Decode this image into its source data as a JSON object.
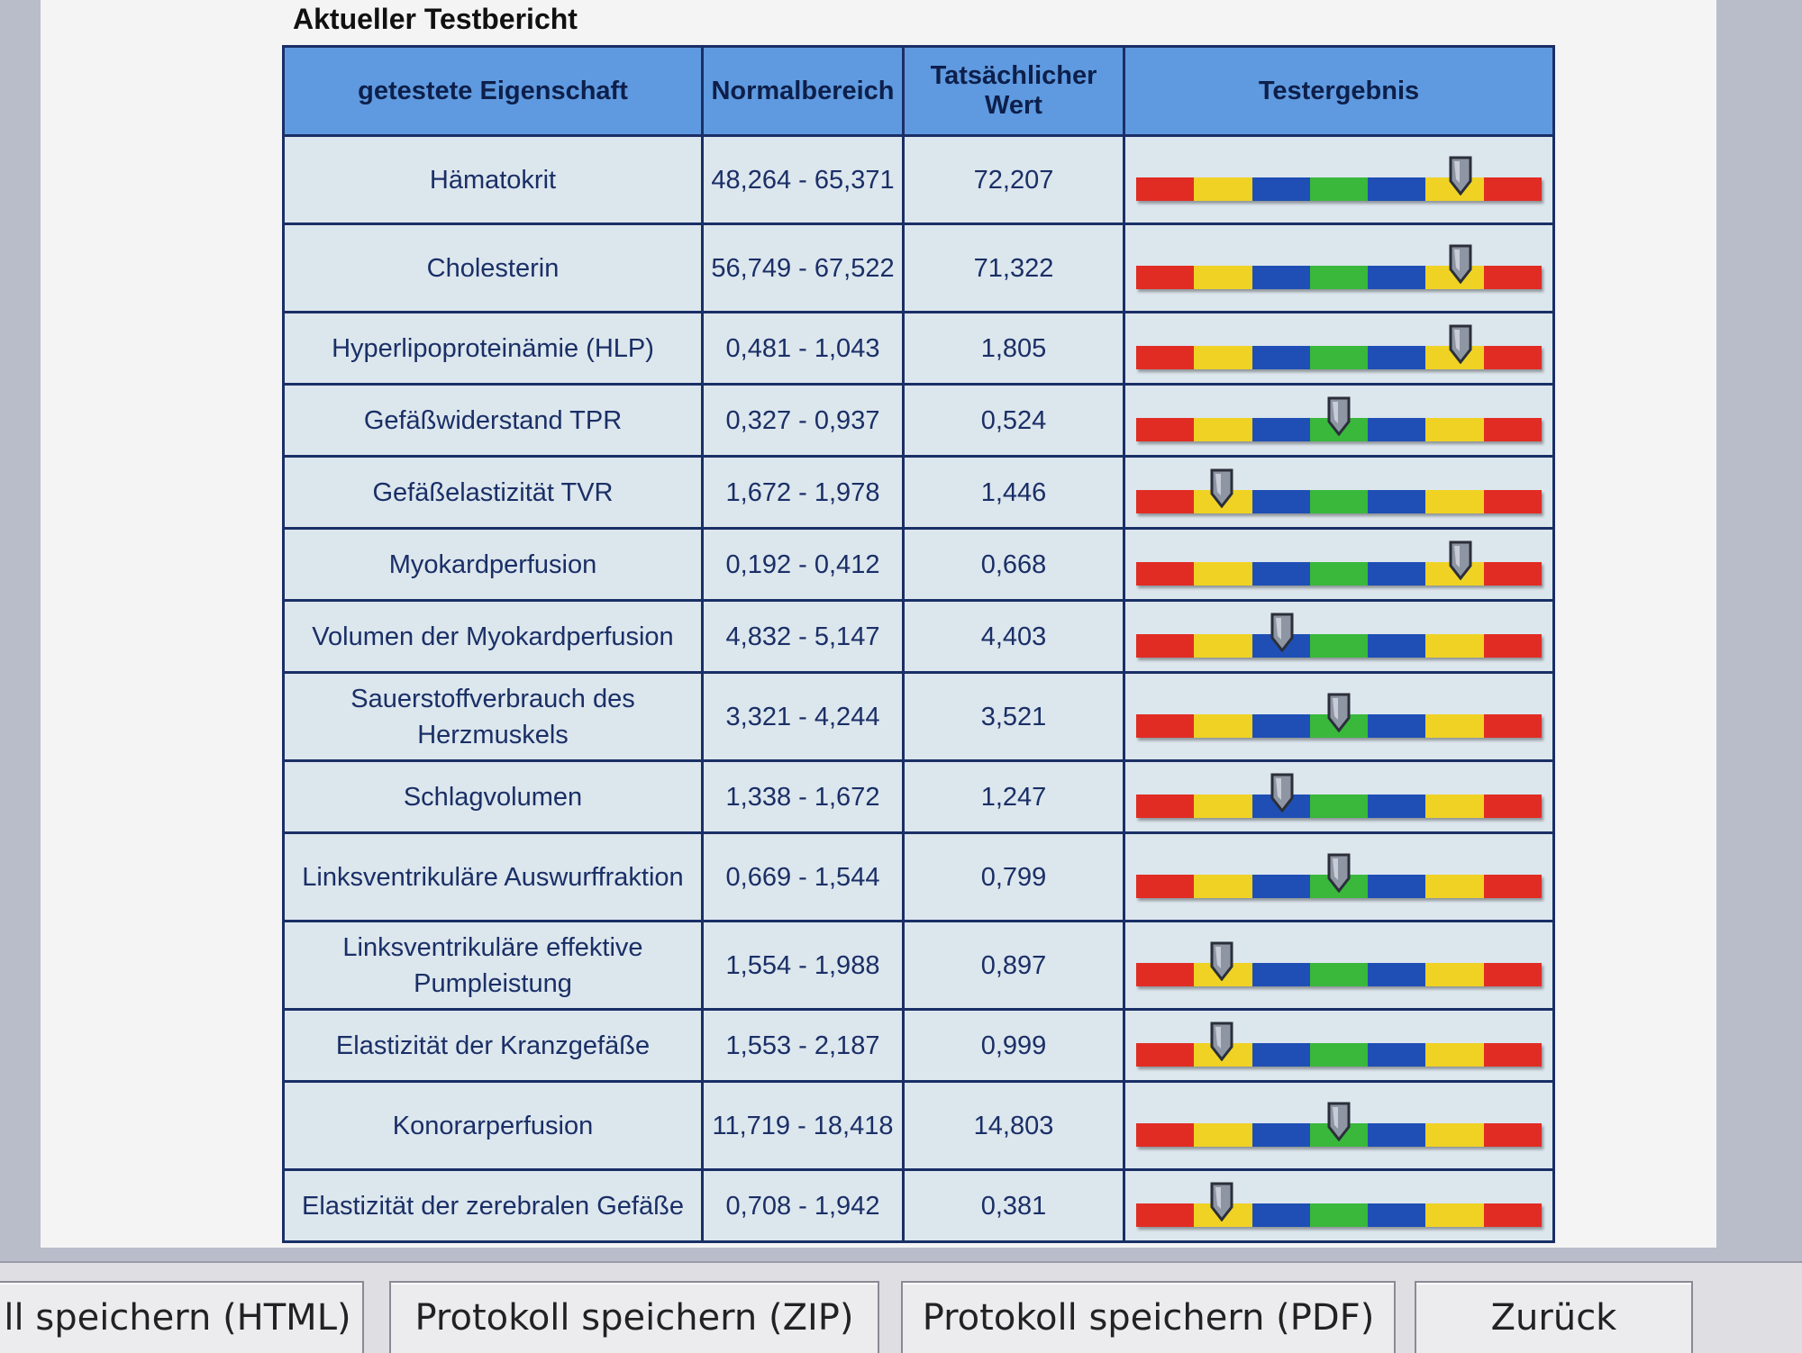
{
  "report": {
    "title": "Aktueller Testbericht",
    "headers": {
      "property": "getestete Eigenschaft",
      "normal_range": "Normalbereich",
      "actual_value": "Tatsächlicher Wert",
      "result": "Testergebnis"
    },
    "rows": [
      {
        "property": "Hämatokrit",
        "range": "48,264 - 65,371",
        "value": "72,207",
        "level": 0.8
      },
      {
        "property": "Cholesterin",
        "range": "56,749 - 67,522",
        "value": "71,322",
        "level": 0.8
      },
      {
        "property": "Hyperlipoproteinämie (HLP)",
        "range": "0,481 - 1,043",
        "value": "1,805",
        "level": 0.8
      },
      {
        "property": "Gefäßwiderstand TPR",
        "range": "0,327 - 0,937",
        "value": "0,524",
        "level": 0.5
      },
      {
        "property": "Gefäßelastizität TVR",
        "range": "1,672 - 1,978",
        "value": "1,446",
        "level": 0.21
      },
      {
        "property": "Myokardperfusion",
        "range": "0,192 - 0,412",
        "value": "0,668",
        "level": 0.8
      },
      {
        "property": "Volumen der Myokardperfusion",
        "range": "4,832 - 5,147",
        "value": "4,403",
        "level": 0.36
      },
      {
        "property": "Sauerstoffverbrauch des Herzmuskels",
        "range": "3,321 - 4,244",
        "value": "3,521",
        "level": 0.5
      },
      {
        "property": "Schlagvolumen",
        "range": "1,338 - 1,672",
        "value": "1,247",
        "level": 0.36
      },
      {
        "property": "Linksventrikuläre Auswurffraktion",
        "range": "0,669 - 1,544",
        "value": "0,799",
        "level": 0.5
      },
      {
        "property": "Linksventrikuläre effektive Pumpleistung",
        "range": "1,554 - 1,988",
        "value": "0,897",
        "level": 0.21
      },
      {
        "property": "Elastizität der Kranzgefäße",
        "range": "1,553 - 2,187",
        "value": "0,999",
        "level": 0.21
      },
      {
        "property": "Konorarperfusion",
        "range": "11,719 - 18,418",
        "value": "14,803",
        "level": 0.5
      },
      {
        "property": "Elastizität der zerebralen Gefäße",
        "range": "0,708 - 1,942",
        "value": "0,381",
        "level": 0.21
      }
    ],
    "bar_segments": [
      "red",
      "yellow",
      "blue",
      "green",
      "blue",
      "yellow",
      "red"
    ],
    "colors": {
      "red": "#e12c24",
      "yellow": "#f0d224",
      "blue": "#1f4fb5",
      "green": "#39b83c",
      "header": "#5f9ae0"
    }
  },
  "toolbar": {
    "save_html": "ll speichern (HTML)",
    "save_zip": "Protokoll speichern (ZIP)",
    "save_pdf": "Protokoll speichern (PDF)",
    "back": "Zurück"
  }
}
